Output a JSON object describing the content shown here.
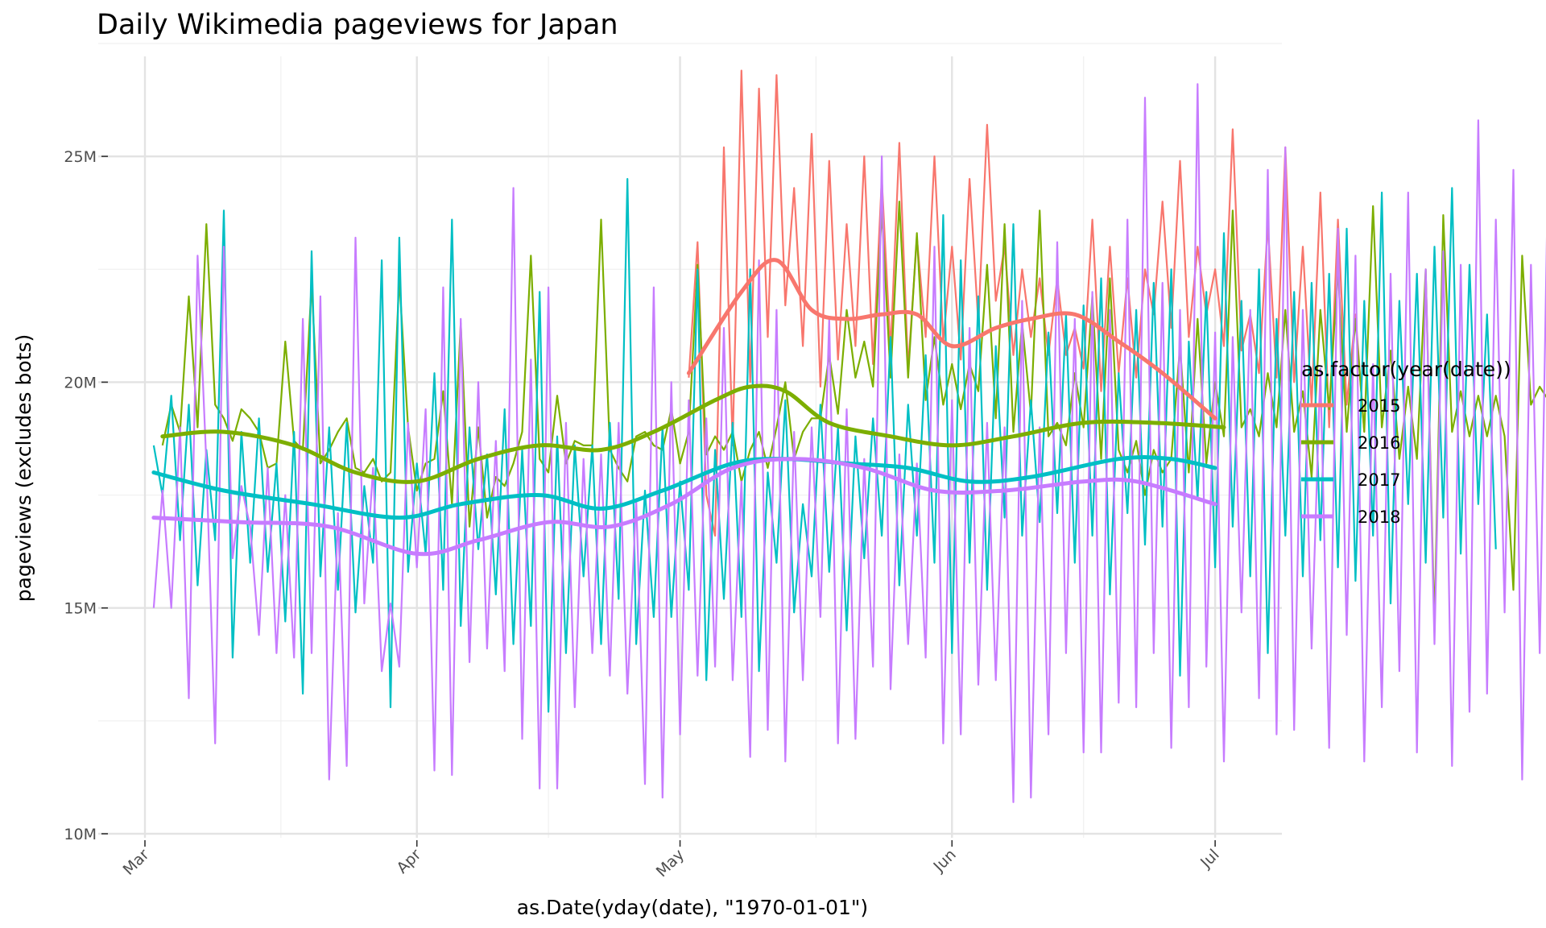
{
  "chart_data": {
    "type": "line",
    "title": "Daily Wikimedia pageviews for Japan",
    "xlabel": "as.Date(yday(date), \"1970-01-01\")",
    "ylabel": "pageviews (excludes bots)",
    "x_axis": {
      "type": "date",
      "range": [
        "1970-03-01",
        "1970-07-02"
      ],
      "ticks": [
        {
          "value": "1970-03-01",
          "label": "Mar"
        },
        {
          "value": "1970-04-01",
          "label": "Apr"
        },
        {
          "value": "1970-05-01",
          "label": "May"
        },
        {
          "value": "1970-06-01",
          "label": "Jun"
        },
        {
          "value": "1970-07-01",
          "label": "Jul"
        }
      ]
    },
    "y_axis": {
      "range": [
        10000000,
        27000000
      ],
      "ticks": [
        {
          "value": 10000000,
          "label": "10M"
        },
        {
          "value": 15000000,
          "label": "15M"
        },
        {
          "value": 20000000,
          "label": "20M"
        },
        {
          "value": 25000000,
          "label": "25M"
        }
      ]
    },
    "grid": true,
    "legend": {
      "title": "as.factor(year(date))",
      "position": "right"
    },
    "series": [
      {
        "name": "2015",
        "color": "#F8766D",
        "daily_start": "1970-05-02",
        "daily_values_millions": [
          20.1,
          23.1,
          17.5,
          16.6,
          25.2,
          18.6,
          26.9,
          20.0,
          26.5,
          21.0,
          26.8,
          21.7,
          24.3,
          20.8,
          25.5,
          19.9,
          24.9,
          20.5,
          23.5,
          20.8,
          25.0,
          20.4,
          24.5,
          20.7,
          25.3,
          20.3,
          23.2,
          21.0,
          25.0,
          20.9,
          23.0,
          20.5,
          24.5,
          21.3,
          25.7,
          21.8,
          23.0,
          20.6,
          22.5,
          21.0,
          22.3,
          20.6,
          22.3,
          20.6,
          21.2,
          20.3,
          23.6,
          19.8,
          23.0,
          20.2,
          22.3,
          20.1,
          22.5,
          21.5,
          24.0,
          21.2,
          24.9,
          21.0,
          23.0,
          21.5,
          22.5,
          20.8,
          25.6,
          20.7,
          21.5,
          20.2,
          23.5,
          20.1,
          25.2,
          20.0,
          23.0,
          19.5,
          24.2,
          19.0,
          23.6,
          19.5,
          21.5,
          18.9
        ],
        "trend": {
          "x": [
            "1970-05-02",
            "1970-05-08",
            "1970-05-12",
            "1970-05-16",
            "1970-05-20",
            "1970-05-24",
            "1970-05-28",
            "1970-06-01",
            "1970-06-06",
            "1970-06-10",
            "1970-06-15",
            "1970-06-20",
            "1970-06-25",
            "1970-07-01"
          ],
          "y": [
            20.2,
            22.0,
            22.7,
            21.6,
            21.4,
            21.5,
            21.5,
            20.8,
            21.2,
            21.4,
            21.5,
            20.9,
            20.2,
            19.2
          ]
        }
      },
      {
        "name": "2016",
        "color": "#7CAE00",
        "daily_start": "1970-03-03",
        "daily_values_millions": [
          18.6,
          19.5,
          18.9,
          21.9,
          19.0,
          23.5,
          19.5,
          19.2,
          18.7,
          19.4,
          19.2,
          18.9,
          18.1,
          18.2,
          20.9,
          18.7,
          18.5,
          22.2,
          18.2,
          18.5,
          18.9,
          19.2,
          18.1,
          18.0,
          18.3,
          17.8,
          18.0,
          22.3,
          19.0,
          17.6,
          18.2,
          18.3,
          19.8,
          17.3,
          21.3,
          16.8,
          19.0,
          17.0,
          17.9,
          17.7,
          18.2,
          18.9,
          22.8,
          18.3,
          18.0,
          19.7,
          18.2,
          18.7,
          18.6,
          18.6,
          23.6,
          18.5,
          18.1,
          17.8,
          18.8,
          18.9,
          18.6,
          18.5,
          19.4,
          18.2,
          18.9,
          22.6,
          18.4,
          18.8,
          18.5,
          18.9,
          17.8,
          18.5,
          18.9,
          18.1,
          19.0,
          20.0,
          18.3,
          18.9,
          19.2,
          19.2,
          20.6,
          19.3,
          21.6,
          20.1,
          20.9,
          19.9,
          23.8,
          20.1,
          24.0,
          20.1,
          23.3,
          19.6,
          21.0,
          19.5,
          20.4,
          19.4,
          20.4,
          19.8,
          22.6,
          19.2,
          23.5,
          18.9,
          21.3,
          19.3,
          23.8,
          18.8,
          19.1,
          18.6,
          20.2,
          19.0,
          21.9,
          18.3,
          22.3,
          18.5,
          18.0,
          18.7,
          17.5,
          18.5,
          18.0,
          18.3,
          20.8,
          18.0,
          21.4,
          18.2,
          20.0,
          18.8,
          23.8,
          19.0,
          19.4,
          18.8,
          20.2,
          19.0,
          21.6,
          18.9,
          19.8,
          17.9,
          21.6,
          19.4,
          22.5,
          18.9,
          21.4,
          18.9,
          23.9,
          19.0,
          20.7,
          18.3,
          19.9,
          18.3,
          22.5,
          14.6,
          23.7,
          18.9,
          19.8,
          18.8,
          19.7,
          18.8,
          19.7,
          18.8,
          15.4,
          22.8,
          19.5,
          19.9,
          19.6,
          19.4,
          19.8,
          18.0
        ],
        "trend": {
          "x": [
            "1970-03-03",
            "1970-03-10",
            "1970-03-18",
            "1970-03-25",
            "1970-04-01",
            "1970-04-08",
            "1970-04-15",
            "1970-04-22",
            "1970-04-28",
            "1970-05-05",
            "1970-05-09",
            "1970-05-13",
            "1970-05-18",
            "1970-05-25",
            "1970-06-01",
            "1970-06-08",
            "1970-06-16",
            "1970-06-24",
            "1970-07-02"
          ],
          "y": [
            18.8,
            18.9,
            18.6,
            18.0,
            17.8,
            18.3,
            18.6,
            18.5,
            18.9,
            19.6,
            19.9,
            19.8,
            19.1,
            18.8,
            18.6,
            18.8,
            19.1,
            19.1,
            19.0
          ]
        }
      },
      {
        "name": "2017",
        "color": "#00BFC4",
        "daily_start": "1970-03-02",
        "daily_values_millions": [
          18.6,
          17.5,
          19.7,
          16.5,
          19.5,
          15.5,
          18.5,
          16.5,
          23.8,
          13.9,
          18.9,
          16.0,
          19.2,
          15.8,
          18.2,
          14.7,
          18.9,
          13.1,
          22.9,
          15.7,
          19.0,
          15.4,
          19.1,
          14.9,
          17.7,
          16.0,
          22.7,
          12.8,
          23.2,
          15.8,
          18.2,
          16.2,
          20.2,
          15.4,
          23.6,
          14.6,
          19.0,
          16.3,
          18.4,
          15.3,
          19.4,
          14.2,
          18.5,
          14.6,
          22.0,
          12.7,
          18.8,
          14.0,
          18.6,
          15.7,
          18.6,
          14.2,
          19.1,
          15.2,
          24.5,
          14.2,
          17.6,
          14.8,
          19.0,
          14.8,
          17.8,
          15.4,
          22.5,
          13.4,
          18.5,
          15.2,
          19.1,
          14.8,
          22.5,
          13.6,
          18.0,
          16.0,
          19.6,
          14.9,
          17.3,
          15.7,
          19.5,
          15.8,
          19.0,
          14.5,
          18.8,
          16.1,
          19.2,
          16.6,
          21.0,
          15.5,
          19.5,
          16.6,
          20.6,
          16.0,
          23.7,
          14.0,
          22.7,
          16.0,
          21.9,
          15.4,
          20.8,
          17.0,
          23.5,
          16.6,
          19.6,
          16.9,
          21.1,
          17.1,
          21.5,
          16.0,
          21.7,
          16.6,
          22.3,
          15.3,
          20.2,
          17.1,
          21.6,
          16.4,
          22.2,
          16.8,
          22.5,
          13.5,
          20.9,
          17.4,
          22.0,
          15.9,
          23.3,
          16.8,
          21.8,
          15.7,
          22.5,
          14.0,
          21.4,
          16.6,
          22.0,
          15.7,
          22.2,
          16.5,
          22.4,
          15.9,
          23.4,
          15.6,
          21.8,
          16.6,
          24.2,
          15.1,
          21.8,
          17.3,
          22.4,
          16.0,
          23.0,
          17.0,
          24.3,
          16.2,
          22.6,
          17.3,
          21.5,
          16.3
        ],
        "trend": {
          "x": [
            "1970-03-02",
            "1970-03-10",
            "1970-03-20",
            "1970-03-30",
            "1970-04-06",
            "1970-04-15",
            "1970-04-22",
            "1970-04-29",
            "1970-05-07",
            "1970-05-13",
            "1970-05-20",
            "1970-05-27",
            "1970-06-03",
            "1970-06-10",
            "1970-06-20",
            "1970-06-26",
            "1970-07-01"
          ],
          "y": [
            18.0,
            17.6,
            17.3,
            17.0,
            17.3,
            17.5,
            17.2,
            17.6,
            18.2,
            18.3,
            18.2,
            18.1,
            17.8,
            17.9,
            18.3,
            18.3,
            18.1
          ]
        }
      },
      {
        "name": "2018",
        "color": "#C77CFF",
        "daily_start": "1970-03-02",
        "daily_values_millions": [
          15.0,
          17.6,
          15.0,
          19.0,
          13.0,
          22.8,
          18.2,
          12.0,
          23.0,
          16.1,
          17.7,
          16.8,
          14.4,
          18.1,
          14.0,
          17.5,
          13.9,
          21.4,
          14.0,
          21.9,
          11.2,
          17.1,
          11.5,
          23.2,
          15.1,
          18.1,
          13.6,
          15.1,
          13.7,
          19.1,
          15.9,
          19.4,
          11.4,
          22.1,
          11.3,
          21.4,
          13.8,
          20.0,
          14.1,
          18.7,
          13.6,
          24.3,
          12.1,
          20.5,
          11.0,
          22.1,
          11.0,
          19.1,
          12.8,
          18.3,
          14.0,
          18.4,
          13.5,
          19.1,
          13.1,
          17.4,
          11.1,
          22.1,
          10.8,
          20.0,
          12.2,
          19.6,
          13.5,
          19.2,
          13.7,
          21.2,
          13.4,
          17.8,
          11.7,
          22.7,
          12.3,
          21.6,
          11.6,
          18.9,
          13.4,
          19.0,
          14.8,
          21.4,
          12.0,
          19.4,
          12.1,
          18.3,
          13.7,
          25.0,
          13.2,
          18.4,
          14.2,
          18.2,
          13.9,
          23.0,
          12.0,
          19.6,
          12.2,
          21.2,
          13.3,
          19.1,
          13.4,
          19.0,
          10.7,
          21.8,
          10.8,
          19.0,
          12.2,
          23.1,
          14.0,
          21.4,
          11.8,
          22.0,
          11.8,
          21.6,
          12.9,
          23.6,
          12.8,
          26.3,
          14.0,
          22.2,
          11.9,
          21.6,
          12.8,
          26.6,
          13.7,
          21.1,
          11.6,
          21.0,
          14.9,
          21.6,
          13.0,
          24.7,
          12.2,
          25.2,
          12.3,
          21.6,
          14.1,
          20.3,
          11.9,
          23.4,
          14.4,
          22.8,
          11.6,
          20.4,
          12.8,
          22.4,
          13.6,
          24.2,
          11.8,
          22.5,
          14.2,
          22.9,
          11.5,
          22.6,
          12.7,
          25.8,
          13.1,
          23.6,
          14.9,
          24.7,
          11.2,
          22.6,
          14.0,
          25.3,
          12.3,
          25.5,
          11.9,
          20.1,
          13.9,
          24.0,
          13.6,
          22.8,
          11.3
        ],
        "trend": {
          "x": [
            "1970-03-02",
            "1970-03-12",
            "1970-03-22",
            "1970-04-01",
            "1970-04-08",
            "1970-04-16",
            "1970-04-23",
            "1970-04-30",
            "1970-05-07",
            "1970-05-14",
            "1970-05-22",
            "1970-05-30",
            "1970-06-07",
            "1970-06-16",
            "1970-06-22",
            "1970-07-01"
          ],
          "y": [
            17.0,
            16.9,
            16.8,
            16.2,
            16.5,
            16.9,
            16.8,
            17.3,
            18.1,
            18.3,
            18.1,
            17.6,
            17.6,
            17.8,
            17.8,
            17.3
          ]
        }
      }
    ]
  }
}
